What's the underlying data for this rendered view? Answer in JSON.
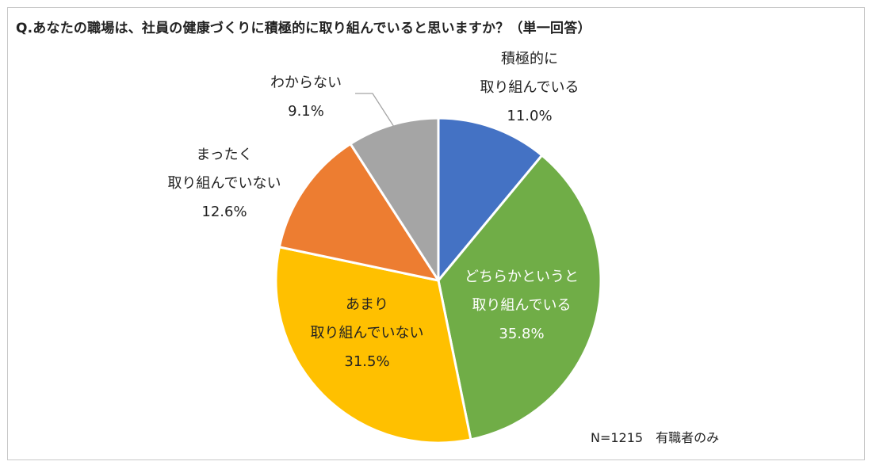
{
  "title": "Q.あなたの職場は、社員の健康づくりに積極的に取り組んでいると思いますか？（単一回答）",
  "note": "N=1215　有職者のみ",
  "chart_data": {
    "type": "pie",
    "title": "Q.あなたの職場は、社員の健康づくりに積極的に取り組んでいると思いますか？（単一回答）",
    "slices": [
      {
        "label": "積極的に取り組んでいる",
        "label_lines": [
          "積極的に",
          "取り組んでいる"
        ],
        "value": 11.0,
        "display": "11.0%",
        "color": "#4472C4"
      },
      {
        "label": "どちらかというと取り組んでいる",
        "label_lines": [
          "どちらかというと",
          "取り組んでいる"
        ],
        "value": 35.8,
        "display": "35.8%",
        "color": "#70AD47"
      },
      {
        "label": "あまり取り組んでいない",
        "label_lines": [
          "あまり",
          "取り組んでいない"
        ],
        "value": 31.5,
        "display": "31.5%",
        "color": "#FFC000"
      },
      {
        "label": "まったく取り組んでいない",
        "label_lines": [
          "まったく",
          "取り組んでいない"
        ],
        "value": 12.6,
        "display": "12.6%",
        "color": "#ED7D31"
      },
      {
        "label": "わからない",
        "label_lines": [
          "わからない"
        ],
        "value": 9.1,
        "display": "9.1%",
        "color": "#A5A5A5"
      }
    ]
  }
}
